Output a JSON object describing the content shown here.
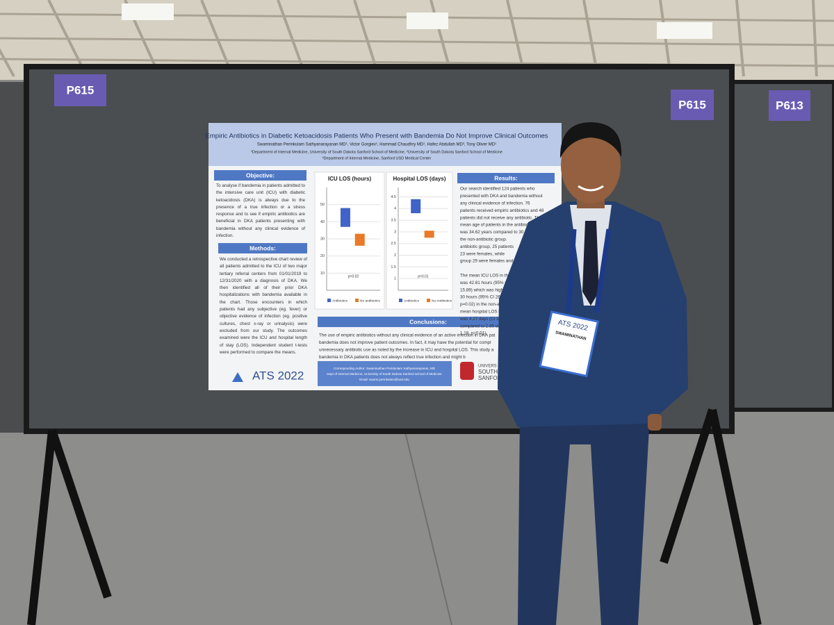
{
  "booth_signs": [
    "P615",
    "P615",
    "P613"
  ],
  "poster": {
    "title": "Empiric Antibiotics in Diabetic Ketoacidosis Patients Who Present with Bandemia Do Not Improve Clinical Outcomes",
    "authors": "Swaminathan Perinkulam Sathyanarayanan MD¹, Victor Gorgiev¹, Hammad Chaudhry MD¹, Hafez Abdullah MD³, Tony Oliver MD¹",
    "affiliations": [
      "¹Department of Internal Medicine, University of South Dakota Sanford School of Medicine, ²University of South Dakota Sanford School of Medicine",
      "³Department of Internal Medicine, Sanford USD Medical Center"
    ],
    "objective": {
      "heading": "Objective:",
      "text": "To analyse if bandemia in patients admitted to the intensive care unit (ICU) with diabetic ketoacidosis (DKA) is always due to the presence of a true infection or a stress response and to see if empiric antibiotics are beneficial in DKA patients presenting with bandemia without any clinical evidence of infection."
    },
    "methods": {
      "heading": "Methods:",
      "text": "We conducted a retrospective chart review of all patients admitted to the ICU of two major tertiary referral centers from 01/01/2019 to 12/31/2020 with a diagnosis of DKA. We then identified all of their prior DKA hospitalizations with bandemia available in the chart. Those encounters in which patients had any subjective (eg. fever) or objective evidence of infection (eg. positive cultures, chest x-ray or urinalysis) were excluded from our study. The outcomes examined were the ICU and hospital length of stay (LOS). Independent student t-tests were performed to compare the means."
    },
    "charts": [
      {
        "title": "ICU LOS (hours)",
        "ylim": [
          0,
          60
        ],
        "yticks": [
          10,
          20,
          30,
          40,
          50
        ],
        "p_value": "p=0.02",
        "series": [
          {
            "name": "Antibiotics",
            "color": "#3f63c8",
            "low": 37,
            "high": 48
          },
          {
            "name": "No antibiotics",
            "color": "#e87a2a",
            "low": 26,
            "high": 33
          }
        ]
      },
      {
        "title": "Hospital LOS (days)",
        "ylim": [
          0.5,
          4.9
        ],
        "yticks": [
          1,
          1.5,
          2,
          2.5,
          3,
          3.5,
          4,
          4.5
        ],
        "p_value": "p=0.01",
        "series": [
          {
            "name": "Antibiotics",
            "color": "#3f63c8",
            "low": 3.8,
            "high": 4.4
          },
          {
            "name": "No Antibiotics",
            "color": "#e87a2a",
            "low": 2.75,
            "high": 3.05
          }
        ]
      }
    ],
    "results": {
      "heading": "Results:",
      "lines": [
        "Our search identified 124 patients who",
        "presented with DKA and bandemia without",
        "any clinical evidence of infection. 76",
        "patients received empiric antibiotics and 48",
        "patients did not receive any antibiotic. The",
        "mean age of patients in the antibiotic group",
        "was 34.62 years compared to 30.50",
        "the non-antibiotic group.",
        "antibiotic group, 25 patients",
        "23 were females, while",
        "group 29 were females and",
        "",
        "The mean ICU LOS in th",
        "was 42.81 hours (95% C",
        "15.89) which was high",
        "30 hours (95% CI 26.3",
        "p=0.02) in the non-a",
        "mean hospital LOS in",
        "was 4.27 days (CI 3.7",
        "compared to 2.85 da",
        "1.18, p=0.01)"
      ]
    },
    "conclusions": {
      "heading": "Conclusions:",
      "lines": [
        "The use of empiric antibiotics without any clinical evidence of an active infection in DKA pat",
        "bandemia does not improve patient outcomes. In fact, it may have the potential for compl",
        "unnecessary antibiotic use as noted by the increase in ICU and hospital LOS. This study a",
        "bandemia in DKA patients does not always reflect true infection and might b"
      ]
    },
    "footer": [
      "Corresponding Author: Swaminathan Perinkulam Sathyanarayanan, MD",
      "Dept of Internal Medicine, University of South Dakota Sanford School of Medicine",
      "Email: swami.perinkulam@usd.edu"
    ],
    "logo": "ATS 2022",
    "university": [
      "UNIVERS",
      "SOUTH",
      "SANFORD S"
    ]
  },
  "badge": {
    "logo": "ATS 2022",
    "name": "SWAMINATHAN"
  }
}
